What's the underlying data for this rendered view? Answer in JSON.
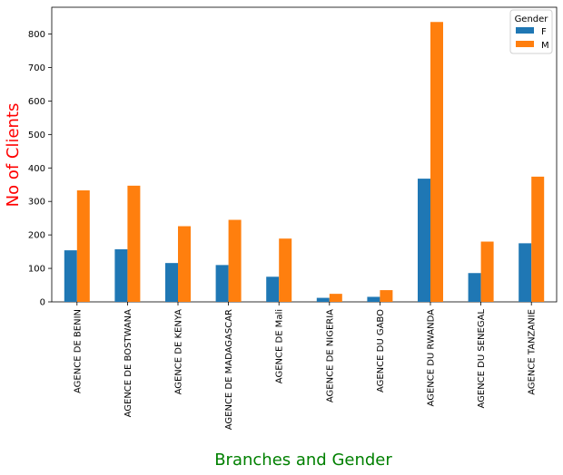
{
  "chart_data": {
    "type": "bar",
    "title": "",
    "xlabel": "Branches and Gender",
    "ylabel": "No of Clients",
    "xlabel_color": "#008000",
    "ylabel_color": "#ff0000",
    "categories": [
      "AGENCE DE BENIN",
      "AGENCE DE BOSTWANA",
      "AGENCE DE KENYA",
      "AGENCE DE MADAGASCAR",
      "AGENCE DE Mali",
      "AGENCE DE NIGERIA",
      "AGENCE DU GABO",
      "AGENCE DU RWANDA",
      "AGENCE DU SENEGAL",
      "AGENCE TANZANIE"
    ],
    "series": [
      {
        "name": "F",
        "color": "#1f77b4",
        "values": [
          154,
          157,
          116,
          110,
          75,
          12,
          15,
          368,
          86,
          175
        ]
      },
      {
        "name": "M",
        "color": "#ff7f0e",
        "values": [
          333,
          347,
          226,
          245,
          189,
          24,
          35,
          836,
          180,
          374
        ]
      }
    ],
    "ylim": [
      0,
      880
    ],
    "yticks": [
      0,
      100,
      200,
      300,
      400,
      500,
      600,
      700,
      800
    ],
    "legend": {
      "title": "Gender",
      "placement": "top-right"
    },
    "grid": false
  }
}
